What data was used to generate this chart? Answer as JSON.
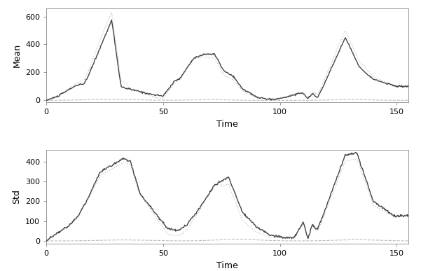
{
  "top_ylabel": "Mean",
  "bottom_ylabel": "Std",
  "xlabel": "Time",
  "xlim": [
    0,
    155
  ],
  "mean_ylim": [
    -15,
    660
  ],
  "std_ylim": [
    -15,
    460
  ],
  "mean_yticks": [
    0,
    200,
    400,
    600
  ],
  "std_yticks": [
    0,
    100,
    200,
    300,
    400
  ],
  "xticks": [
    0,
    50,
    100,
    150
  ],
  "line_color_solid": "#444444",
  "line_color_dotted": "#bbbbbb",
  "line_color_dashed": "#bbbbbb",
  "lw_solid": 1.0,
  "lw_dotted": 0.8,
  "lw_dashed": 0.8,
  "background": "#ffffff",
  "figsize": [
    6.01,
    3.87
  ],
  "dpi": 100
}
